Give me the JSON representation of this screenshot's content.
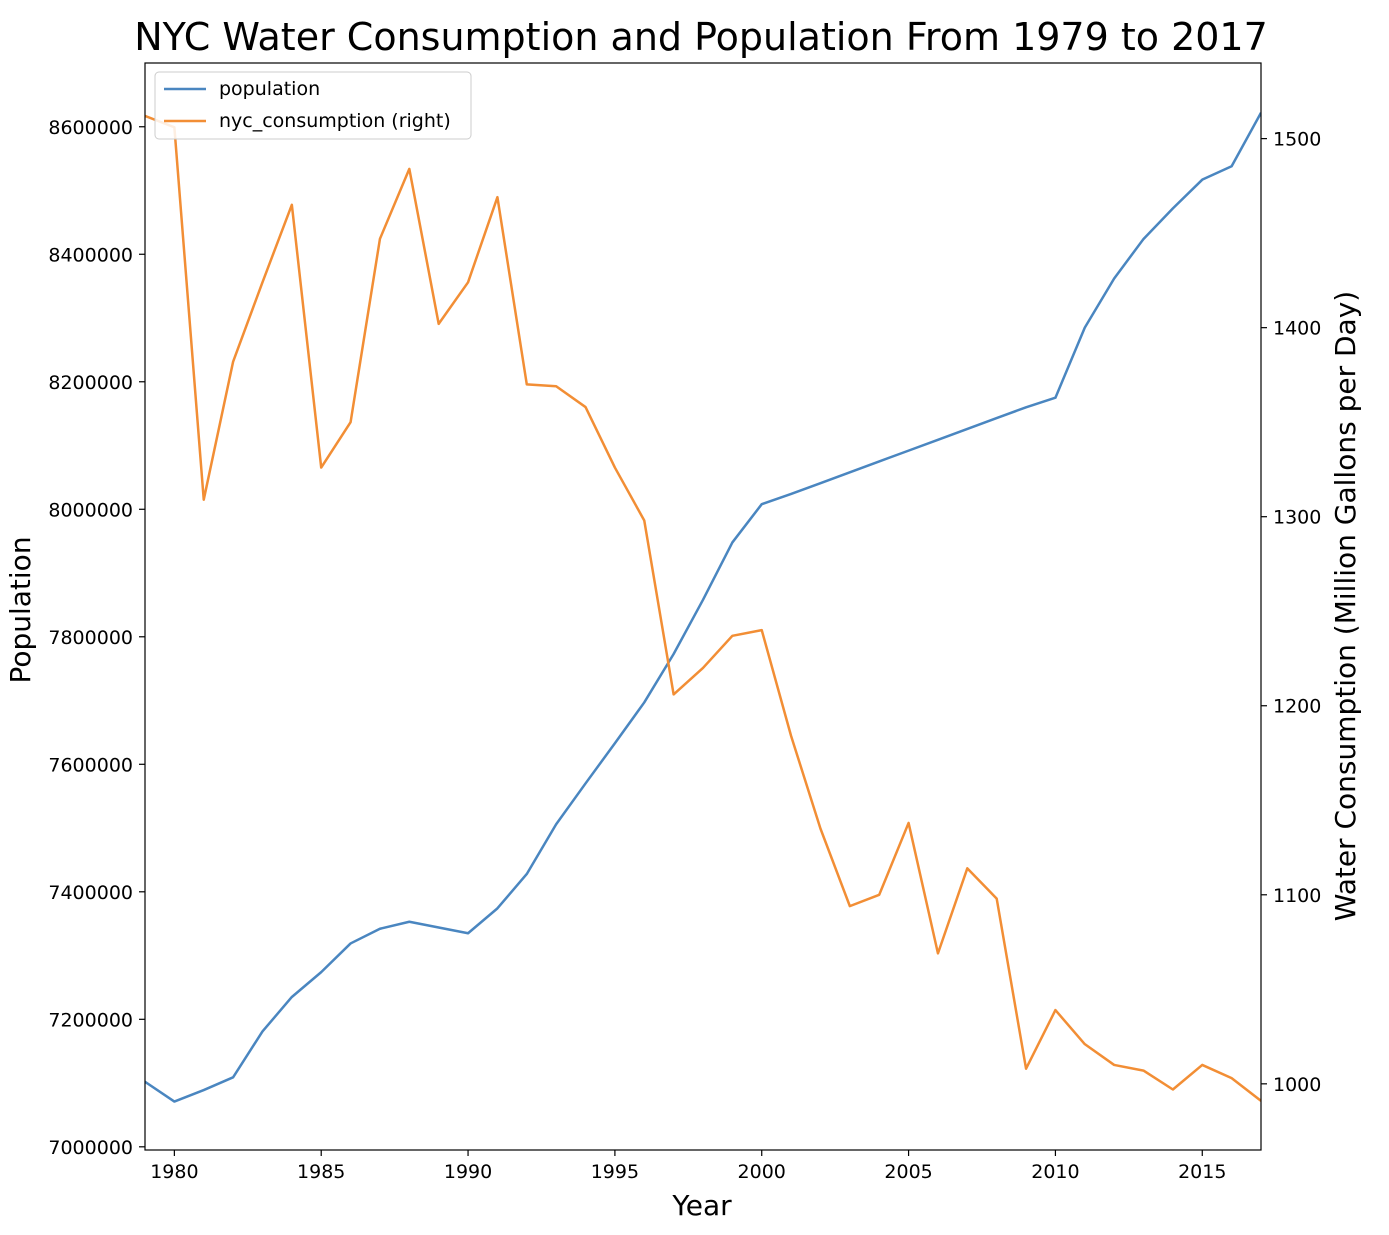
{
  "chart_data": {
    "type": "line",
    "title": "NYC Water Consumption and Population From 1979 to 2017",
    "xlabel": "Year",
    "ylabel": "Population",
    "ylabel_right": "Water Consumption (Million Gallons per Day)",
    "xlim": [
      1979,
      2017
    ],
    "ylim": [
      6995000,
      8700000
    ],
    "ylim_right": [
      965,
      1540
    ],
    "xticks": [
      "1980",
      "1985",
      "1990",
      "1995",
      "2000",
      "2005",
      "2010",
      "2015"
    ],
    "yticks": [
      "7000000",
      "7200000",
      "7400000",
      "7600000",
      "7800000",
      "8000000",
      "8200000",
      "8400000",
      "8600000"
    ],
    "yticks_right": [
      "1000",
      "1100",
      "1200",
      "1300",
      "1400",
      "1500"
    ],
    "grid": false,
    "legend_position": "top-left",
    "x": [
      1979,
      1980,
      1981,
      1982,
      1983,
      1984,
      1985,
      1986,
      1987,
      1988,
      1989,
      1990,
      1991,
      1992,
      1993,
      1994,
      1995,
      1996,
      1997,
      1998,
      1999,
      2000,
      2001,
      2002,
      2003,
      2004,
      2005,
      2006,
      2007,
      2008,
      2009,
      2010,
      2011,
      2012,
      2013,
      2014,
      2015,
      2016,
      2017
    ],
    "series": [
      {
        "name": "population",
        "axis": "left",
        "color": "#4a86c0",
        "values": [
          7102000,
          7071000,
          7089000,
          7109000,
          7181000,
          7235000,
          7274000,
          7319000,
          7342000,
          7353000,
          7344000,
          7335000,
          7374000,
          7428000,
          7506000,
          7570000,
          7633000,
          7697000,
          7773000,
          7858000,
          7948000,
          8008000,
          8024000,
          8041000,
          8058000,
          8075000,
          8092000,
          8109000,
          8126000,
          8143000,
          8160000,
          8175000,
          8285000,
          8362000,
          8424000,
          8472000,
          8517000,
          8538000,
          8622000
        ]
      },
      {
        "name": "nyc_consumption (right)",
        "axis": "right",
        "color": "#f28e35",
        "values": [
          1512,
          1506,
          1309,
          1382,
          1424,
          1465,
          1326,
          1350,
          1447,
          1484,
          1402,
          1424,
          1469,
          1370,
          1369,
          1358,
          1326,
          1298,
          1206,
          1220,
          1237,
          1240,
          1184,
          1135,
          1094,
          1100,
          1138,
          1069,
          1114,
          1098,
          1008,
          1039,
          1021,
          1010,
          1007,
          997,
          1010,
          1003,
          991
        ]
      }
    ]
  }
}
